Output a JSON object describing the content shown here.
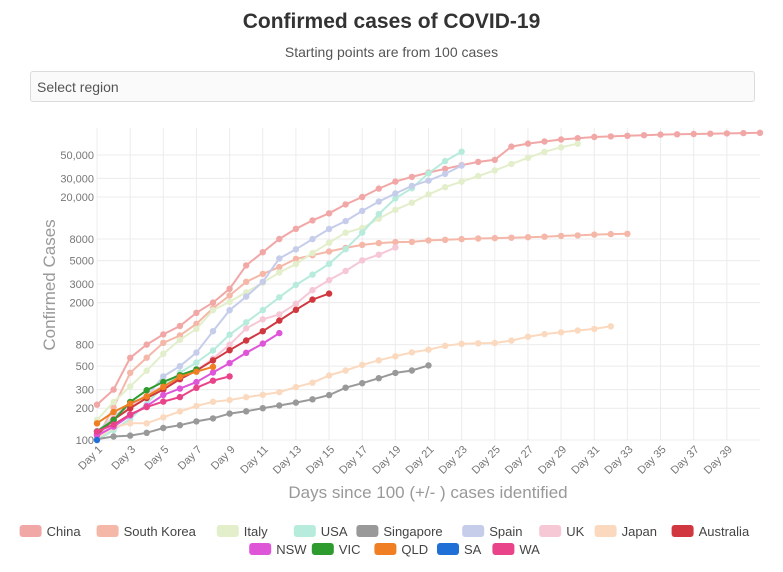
{
  "chart_data": {
    "type": "line",
    "title": "Confirmed cases of COVID-19",
    "subtitle": "Starting points are from 100 cases",
    "xlabel": "Days since 100 (+/- ) cases identified",
    "ylabel": "Confirmed Cases",
    "yscale": "log",
    "ylim": [
      100,
      90000
    ],
    "xlim": [
      1,
      41
    ],
    "x_tick_labels": [
      "Day 1",
      "Day 3",
      "Day 5",
      "Day 7",
      "Day 9",
      "Day 11",
      "Day 13",
      "Day 15",
      "Day 17",
      "Day 19",
      "Day 21",
      "Day 23",
      "Day 25",
      "Day 27",
      "Day 29",
      "Day 31",
      "Day 33",
      "Day 35",
      "Day 37",
      "Day 39"
    ],
    "x_ticks": [
      1,
      3,
      5,
      7,
      9,
      11,
      13,
      15,
      17,
      19,
      21,
      23,
      25,
      27,
      29,
      31,
      33,
      35,
      37,
      39
    ],
    "y_ticks": [
      100,
      200,
      300,
      500,
      800,
      2000,
      3000,
      5000,
      8000,
      20000,
      30000,
      50000
    ],
    "y_tick_labels": [
      "100",
      "200",
      "300",
      "500",
      "800",
      "2000",
      "3000",
      "5000",
      "8000",
      "20,000",
      "30,000",
      "50,000"
    ],
    "grid": true,
    "legend_position": "bottom",
    "series": [
      {
        "name": "China",
        "color": "#f2a7a7",
        "values": [
          216,
          300,
          600,
          800,
          1000,
          1200,
          1600,
          2000,
          2700,
          4500,
          6000,
          8000,
          10000,
          12000,
          14000,
          17000,
          20000,
          24000,
          28000,
          31000,
          34000,
          37000,
          40000,
          43000,
          45000,
          60000,
          64000,
          67000,
          70000,
          72000,
          74000,
          75000,
          76000,
          77000,
          78000,
          78500,
          79000,
          79500,
          80000,
          80500,
          81000
        ]
      },
      {
        "name": "South Korea",
        "color": "#f4b7a8",
        "values": [
          104,
          204,
          433,
          602,
          833,
          977,
          1261,
          1766,
          2337,
          3150,
          3736,
          4335,
          5186,
          5621,
          6088,
          6593,
          7041,
          7313,
          7478,
          7513,
          7755,
          7869,
          7979,
          8086,
          8162,
          8236,
          8320,
          8413,
          8565,
          8652,
          8799,
          8897,
          8961
        ]
      },
      {
        "name": "Italy",
        "color": "#e3eecb",
        "values": [
          155,
          229,
          322,
          453,
          655,
          888,
          1128,
          1694,
          2036,
          2502,
          3089,
          3858,
          4636,
          5883,
          7375,
          9172,
          10149,
          12462,
          15113,
          17660,
          21157,
          24747,
          27980,
          31506,
          35713,
          41035,
          47021,
          53578,
          59138,
          63927
        ]
      },
      {
        "name": "USA",
        "color": "#b7ebdc",
        "values": [
          100,
          124,
          158,
          221,
          319,
          435,
          541,
          704,
          994,
          1301,
          1697,
          2247,
          2943,
          3680,
          4663,
          6411,
          9197,
          13779,
          19383,
          24207,
          33546,
          43734,
          53740
        ]
      },
      {
        "name": "Singapore",
        "color": "#999999",
        "values": [
          102,
          108,
          110,
          117,
          130,
          138,
          150,
          160,
          178,
          187,
          200,
          212,
          226,
          243,
          266,
          313,
          345,
          385,
          432,
          455,
          509
        ]
      },
      {
        "name": "Spain",
        "color": "#c6cdeb",
        "values": [
          120,
          165,
          222,
          259,
          400,
          500,
          673,
          1073,
          1695,
          2277,
          3146,
          5232,
          6391,
          7988,
          9942,
          11826,
          14769,
          18077,
          21571,
          25496,
          28572,
          33089,
          39673
        ]
      },
      {
        "name": "UK",
        "color": "#f6c8d6",
        "values": [
          115,
          163,
          206,
          273,
          321,
          373,
          456,
          590,
          798,
          1140,
          1391,
          1543,
          1950,
          2626,
          3269,
          3983,
          5018,
          5683,
          6650
        ]
      },
      {
        "name": "Japan",
        "color": "#fbd9bf",
        "values": [
          105,
          132,
          144,
          144,
          164,
          186,
          210,
          230,
          239,
          254,
          268,
          284,
          317,
          349,
          408,
          455,
          514,
          568,
          620,
          675,
          716,
          780,
          814,
          824,
          829,
          873,
          950,
          1007,
          1046,
          1089,
          1128,
          1193
        ]
      },
      {
        "name": "Australia",
        "color": "#d0373f",
        "values": [
          112,
          156,
          200,
          250,
          300,
          377,
          454,
          568,
          709,
          876,
          1071,
          1352,
          1709,
          2136,
          2431
        ]
      },
      {
        "name": "NSW",
        "color": "#df55d8",
        "values": [
          110,
          134,
          171,
          210,
          267,
          307,
          353,
          436,
          535,
          669,
          818,
          1029
        ]
      },
      {
        "name": "VIC",
        "color": "#2e9b2e",
        "values": [
          121,
          154,
          229,
          296,
          355,
          411,
          466
        ]
      },
      {
        "name": "QLD",
        "color": "#ef7f22",
        "values": [
          144,
          184,
          221,
          259,
          319,
          397,
          443,
          493
        ]
      },
      {
        "name": "SA",
        "color": "#1f6fd6",
        "values": [
          100
        ]
      },
      {
        "name": "WA",
        "color": "#e9448a",
        "values": [
          120,
          140,
          175,
          205,
          231,
          255,
          312,
          364,
          400
        ]
      }
    ]
  },
  "region_select": {
    "placeholder": "Select region"
  }
}
